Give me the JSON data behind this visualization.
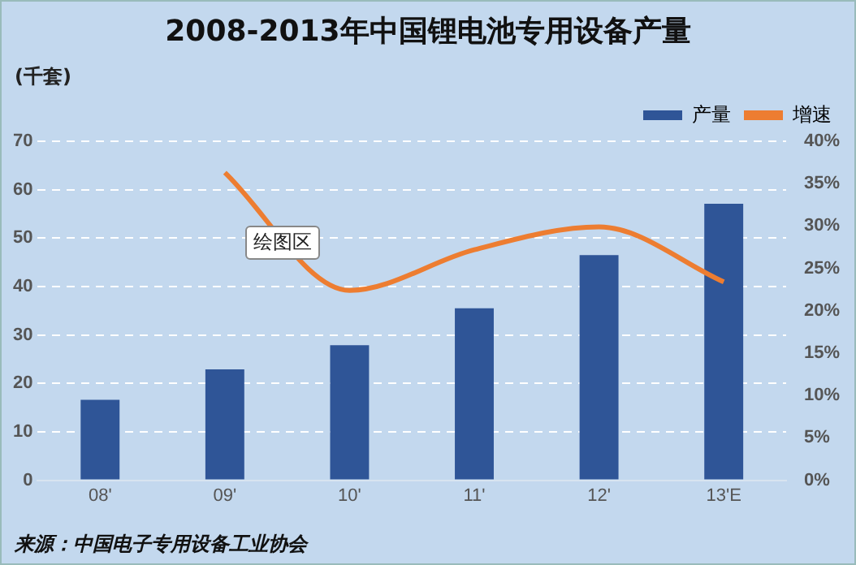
{
  "chart_data": {
    "type": "bar",
    "title": "2008-2013年中国锂电池专用设备产量",
    "ylabel": "(千套)",
    "categories": [
      "08'",
      "09'",
      "10'",
      "11'",
      "12'",
      "13'E"
    ],
    "series": [
      {
        "name": "产量",
        "color": "#2f5597",
        "values": [
          16.6,
          22.9,
          27.9,
          35.5,
          46.5,
          57.1
        ]
      },
      {
        "name": "增速",
        "type": "line",
        "axis": "y2",
        "color": "#ed7d31",
        "values": [
          null,
          36.3,
          22.4,
          27.2,
          29.9,
          23.4
        ]
      }
    ],
    "ylim": [
      0,
      70
    ],
    "yticks": [
      0,
      10,
      20,
      30,
      40,
      50,
      60,
      70
    ],
    "y2lim": [
      0,
      40
    ],
    "y2ticks": [
      {
        "value": 0,
        "label": "0%"
      },
      {
        "value": 5,
        "label": "5%"
      },
      {
        "value": 10,
        "label": "10%"
      },
      {
        "value": 15,
        "label": "15%"
      },
      {
        "value": 20,
        "label": "20%"
      },
      {
        "value": 25,
        "label": "25%"
      },
      {
        "value": 30,
        "label": "30%"
      },
      {
        "value": 35,
        "label": "35%"
      },
      {
        "value": 40,
        "label": "40%"
      }
    ],
    "grid": "y",
    "legend": "top right",
    "marker": "none",
    "line_style": "solid",
    "annotations": [
      "绘图区",
      "来源：中国电子专用设备工业协会"
    ]
  }
}
